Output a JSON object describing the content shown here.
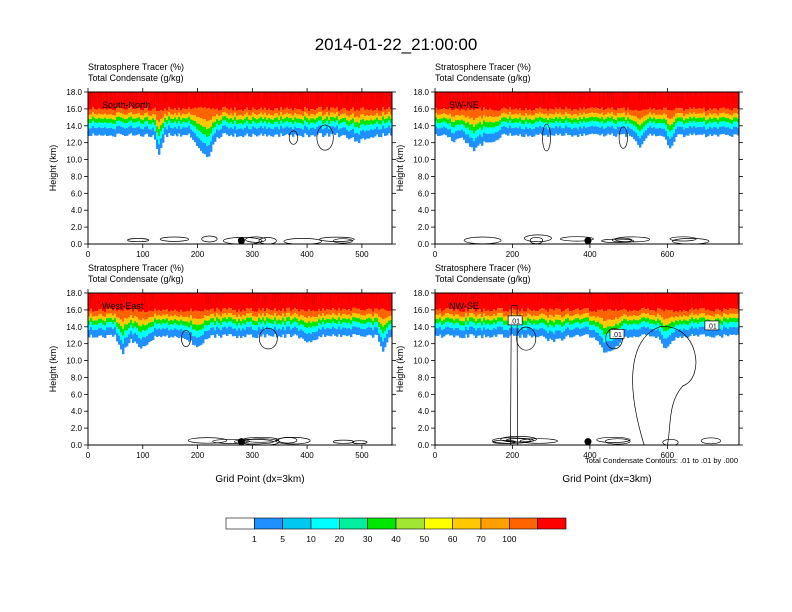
{
  "page_title": "2014-01-22_21:00:00",
  "cbar": {
    "colors": [
      "#ffffff",
      "#1e90ff",
      "#00c8f0",
      "#00ffff",
      "#00f0a0",
      "#00e600",
      "#a0e632",
      "#ffff00",
      "#ffc800",
      "#ffa000",
      "#ff6400",
      "#ff0000"
    ],
    "labels": [
      "1",
      "5",
      "10",
      "20",
      "30",
      "40",
      "50",
      "60",
      "70",
      "100"
    ]
  },
  "footnote": "Total Condensate Contours: .01 to .01 by .000",
  "chart_data": [
    {
      "type": "heatmap",
      "title_line1": "Stratosphere Tracer   (%)",
      "title_line2": "Total Condensate   (g/kg)",
      "ylabel": "Height (km)",
      "xlabel": "",
      "panel_label": "South-North",
      "yticks": [
        "0.0",
        "2.0",
        "4.0",
        "6.0",
        "8.0",
        "10.0",
        "12.0",
        "14.0",
        "16.0",
        "18.0"
      ],
      "ylim": [
        0,
        18
      ],
      "xlim": [
        0,
        555
      ],
      "xticks": [
        "0",
        "100",
        "200",
        "300",
        "400",
        "500"
      ],
      "xtick_values": [
        0,
        100,
        200,
        300,
        400,
        500
      ],
      "marker_x": 280,
      "layer_boundaries_km": [
        16.0,
        15.4,
        14.9,
        14.4,
        13.8,
        12.9
      ],
      "layer_colors": [
        "#ff0000",
        "#ff6400",
        "#ffc800",
        "#00e600",
        "#00ffff",
        "#1e90ff"
      ]
    },
    {
      "type": "heatmap",
      "title_line1": "Stratosphere Tracer   (%)",
      "title_line2": "Total Condensate   (g/kg)",
      "ylabel": "Height (km)",
      "xlabel": "",
      "panel_label": "SW-NE",
      "yticks": [
        "0.0",
        "2.0",
        "4.0",
        "6.0",
        "8.0",
        "10.0",
        "12.0",
        "14.0",
        "16.0",
        "18.0"
      ],
      "ylim": [
        0,
        18
      ],
      "xlim": [
        0,
        785
      ],
      "xticks": [
        "0",
        "200",
        "400",
        "600"
      ],
      "xtick_values": [
        0,
        200,
        400,
        600
      ],
      "marker_x": 395,
      "layer_boundaries_km": [
        16.0,
        15.4,
        14.9,
        14.4,
        13.8,
        12.9
      ],
      "layer_colors": [
        "#ff0000",
        "#ff6400",
        "#ffc800",
        "#00e600",
        "#00ffff",
        "#1e90ff"
      ]
    },
    {
      "type": "heatmap",
      "title_line1": "Stratosphere Tracer   (%)",
      "title_line2": "Total Condensate   (g/kg)",
      "ylabel": "Height (km)",
      "xlabel": "Grid Point (dx=3km)",
      "panel_label": "West-East",
      "yticks": [
        "0.0",
        "2.0",
        "4.0",
        "6.0",
        "8.0",
        "10.0",
        "12.0",
        "14.0",
        "16.0",
        "18.0"
      ],
      "ylim": [
        0,
        18
      ],
      "xlim": [
        0,
        555
      ],
      "xticks": [
        "0",
        "100",
        "200",
        "300",
        "400",
        "500"
      ],
      "xtick_values": [
        0,
        100,
        200,
        300,
        400,
        500
      ],
      "marker_x": 280,
      "layer_boundaries_km": [
        16.0,
        15.4,
        14.9,
        14.4,
        13.8,
        12.9
      ],
      "layer_colors": [
        "#ff0000",
        "#ff6400",
        "#ffc800",
        "#00e600",
        "#00ffff",
        "#1e90ff"
      ]
    },
    {
      "type": "heatmap",
      "title_line1": "Stratosphere Tracer   (%)",
      "title_line2": "Total Condensate   (g/kg)",
      "ylabel": "Height (km)",
      "xlabel": "Grid Point (dx=3km)",
      "panel_label": "NW-SE",
      "yticks": [
        "0.0",
        "2.0",
        "4.0",
        "6.0",
        "8.0",
        "10.0",
        "12.0",
        "14.0",
        "16.0",
        "18.0"
      ],
      "ylim": [
        0,
        18
      ],
      "xlim": [
        0,
        785
      ],
      "xticks": [
        "0",
        "200",
        "400",
        "600"
      ],
      "xtick_values": [
        0,
        200,
        400,
        600
      ],
      "marker_x": 395,
      "contour_labels": [
        ".01",
        ".01",
        ".01"
      ],
      "layer_boundaries_km": [
        16.0,
        15.4,
        14.9,
        14.4,
        13.8,
        12.9
      ],
      "layer_colors": [
        "#ff0000",
        "#ff6400",
        "#ffc800",
        "#00e600",
        "#00ffff",
        "#1e90ff"
      ]
    }
  ]
}
